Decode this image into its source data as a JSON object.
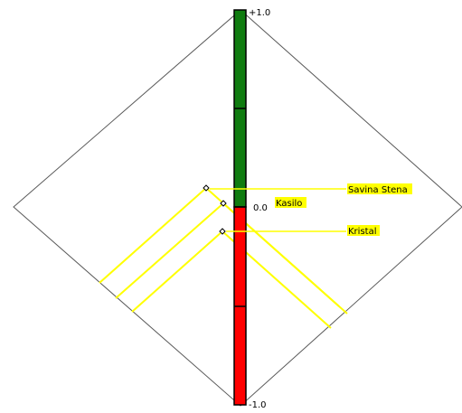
{
  "scale": {
    "top_label": "+1.0",
    "mid_label": "0.0",
    "bottom_label": "-1.0",
    "max": 1.0,
    "min": -1.0
  },
  "colors": {
    "positive": "#107c10",
    "negative": "#ff0000",
    "highlight": "#ffff00",
    "outline": "#595959"
  },
  "items": [
    {
      "label": "Savina Stena",
      "value": 0.06
    },
    {
      "label": "Kasilo",
      "value": -0.01
    },
    {
      "label": "Kristal",
      "value": -0.12
    }
  ]
}
